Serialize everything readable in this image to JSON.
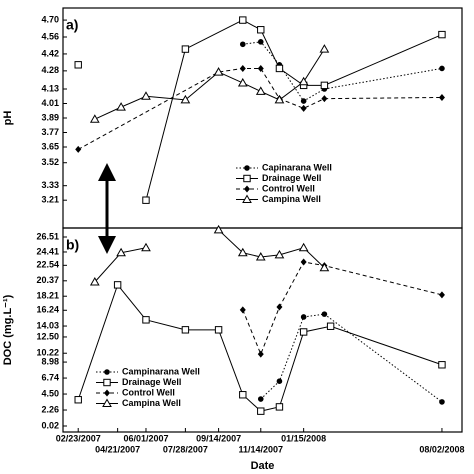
{
  "chart_data": [
    {
      "type": "line",
      "annotation": "a)",
      "ylabel": "pH",
      "xlim": [
        "02/01/2007",
        "08/31/2008"
      ],
      "ylim": [
        2.98,
        4.8
      ],
      "yticks": [
        3.21,
        3.33,
        3.52,
        3.65,
        3.77,
        3.89,
        4.01,
        4.13,
        4.28,
        4.42,
        4.56,
        {
          "value": 4.7,
          "label": "4.70"
        }
      ],
      "legend": "lower right",
      "series": [
        {
          "name": "Capinarana Well",
          "color": "#000000",
          "marker": "circle",
          "line": "dotted",
          "x": [
            "10/19/2007",
            "11/14/2007",
            "12/11/2007",
            "01/15/2008",
            "02/14/2008",
            "08/02/2008"
          ],
          "values": [
            4.5,
            4.52,
            4.33,
            4.03,
            4.13,
            4.3
          ]
        },
        {
          "name": "Drainage Well",
          "color": "#000000",
          "marker": "square",
          "line": "solid",
          "x": [
            "02/23/2007",
            "04/21/2007",
            "06/01/2007",
            "07/28/2007",
            "10/19/2007",
            "11/14/2007",
            "12/11/2007",
            "01/15/2008",
            "02/14/2008",
            "08/02/2008"
          ],
          "values": [
            4.33,
            null,
            3.21,
            4.46,
            4.7,
            4.62,
            4.3,
            4.16,
            4.16,
            4.58
          ]
        },
        {
          "name": "Control Well",
          "color": "#000000",
          "marker": "diamond",
          "line": "dashed",
          "x": [
            "02/23/2007",
            "09/14/2007",
            "10/19/2007",
            "11/14/2007",
            "12/11/2007",
            "01/15/2008",
            "02/14/2008",
            "08/02/2008"
          ],
          "values": [
            3.63,
            4.27,
            4.3,
            4.3,
            4.05,
            3.97,
            4.05,
            4.06
          ]
        },
        {
          "name": "Campina Well",
          "color": "#000000",
          "marker": "triangle",
          "line": "solid",
          "x": [
            "03/19/2007",
            "04/26/2007",
            "06/01/2007",
            "07/28/2007",
            "09/14/2007",
            "10/19/2007",
            "11/14/2007",
            "12/11/2007",
            "01/15/2008",
            "02/14/2008"
          ],
          "values": [
            3.88,
            3.98,
            4.07,
            4.04,
            4.27,
            4.18,
            4.11,
            4.04,
            4.19,
            4.46
          ]
        }
      ]
    },
    {
      "type": "line",
      "annotation": "b)",
      "ylabel": "DOC (mg.L⁻¹)",
      "xlabel": "Date",
      "xlim": [
        "02/01/2007",
        "08/31/2008"
      ],
      "ylim": [
        -0.82,
        27.77
      ],
      "xticks": [
        "02/23/2007",
        "04/21/2007",
        "06/01/2007",
        "07/28/2007",
        "09/14/2007",
        "11/14/2007",
        "01/15/2008",
        "08/02/2008"
      ],
      "yticks": [
        0.02,
        2.26,
        {
          "value": 4.5,
          "label": "4.50"
        },
        6.74,
        8.98,
        10.22,
        {
          "value": 12.5,
          "label": "12.50"
        },
        14.03,
        16.24,
        18.21,
        20.37,
        22.54,
        24.41,
        26.51
      ],
      "legend": "lower left",
      "series": [
        {
          "name": "Campinarana Well",
          "color": "#000000",
          "marker": "circle",
          "line": "dotted",
          "x": [
            "11/14/2007",
            "12/11/2007",
            "01/15/2008",
            "02/14/2008",
            "08/02/2008"
          ],
          "values": [
            3.8,
            6.3,
            15.3,
            15.7,
            3.4
          ]
        },
        {
          "name": "Drainage Well",
          "color": "#000000",
          "marker": "square",
          "line": "solid",
          "x": [
            "02/23/2007",
            "04/21/2007",
            "06/01/2007",
            "07/28/2007",
            "09/14/2007",
            "10/19/2007",
            "11/14/2007",
            "12/11/2007",
            "01/15/2008",
            "02/23/2008",
            "08/02/2008"
          ],
          "values": [
            3.7,
            19.8,
            14.9,
            13.5,
            13.5,
            4.4,
            2.1,
            2.7,
            13.2,
            14.0,
            8.6
          ]
        },
        {
          "name": "Control Well",
          "color": "#000000",
          "marker": "diamond",
          "line": "dashed",
          "x": [
            "10/19/2007",
            "11/14/2007",
            "12/11/2007",
            "01/15/2008",
            "02/14/2008",
            "08/02/2008"
          ],
          "values": [
            16.3,
            10.1,
            16.7,
            23.0,
            22.5,
            18.4
          ]
        },
        {
          "name": "Campina Well",
          "color": "#000000",
          "marker": "triangle",
          "line": "solid",
          "x": [
            "03/19/2007",
            "04/26/2007",
            "06/01/2007",
            "07/28/2007",
            "09/14/2007",
            "10/19/2007",
            "11/14/2007",
            "12/11/2007",
            "01/15/2008",
            "02/14/2008"
          ],
          "values": [
            20.2,
            24.3,
            25.0,
            null,
            27.5,
            24.3,
            23.7,
            24.0,
            25.0,
            22.2
          ]
        }
      ]
    }
  ]
}
